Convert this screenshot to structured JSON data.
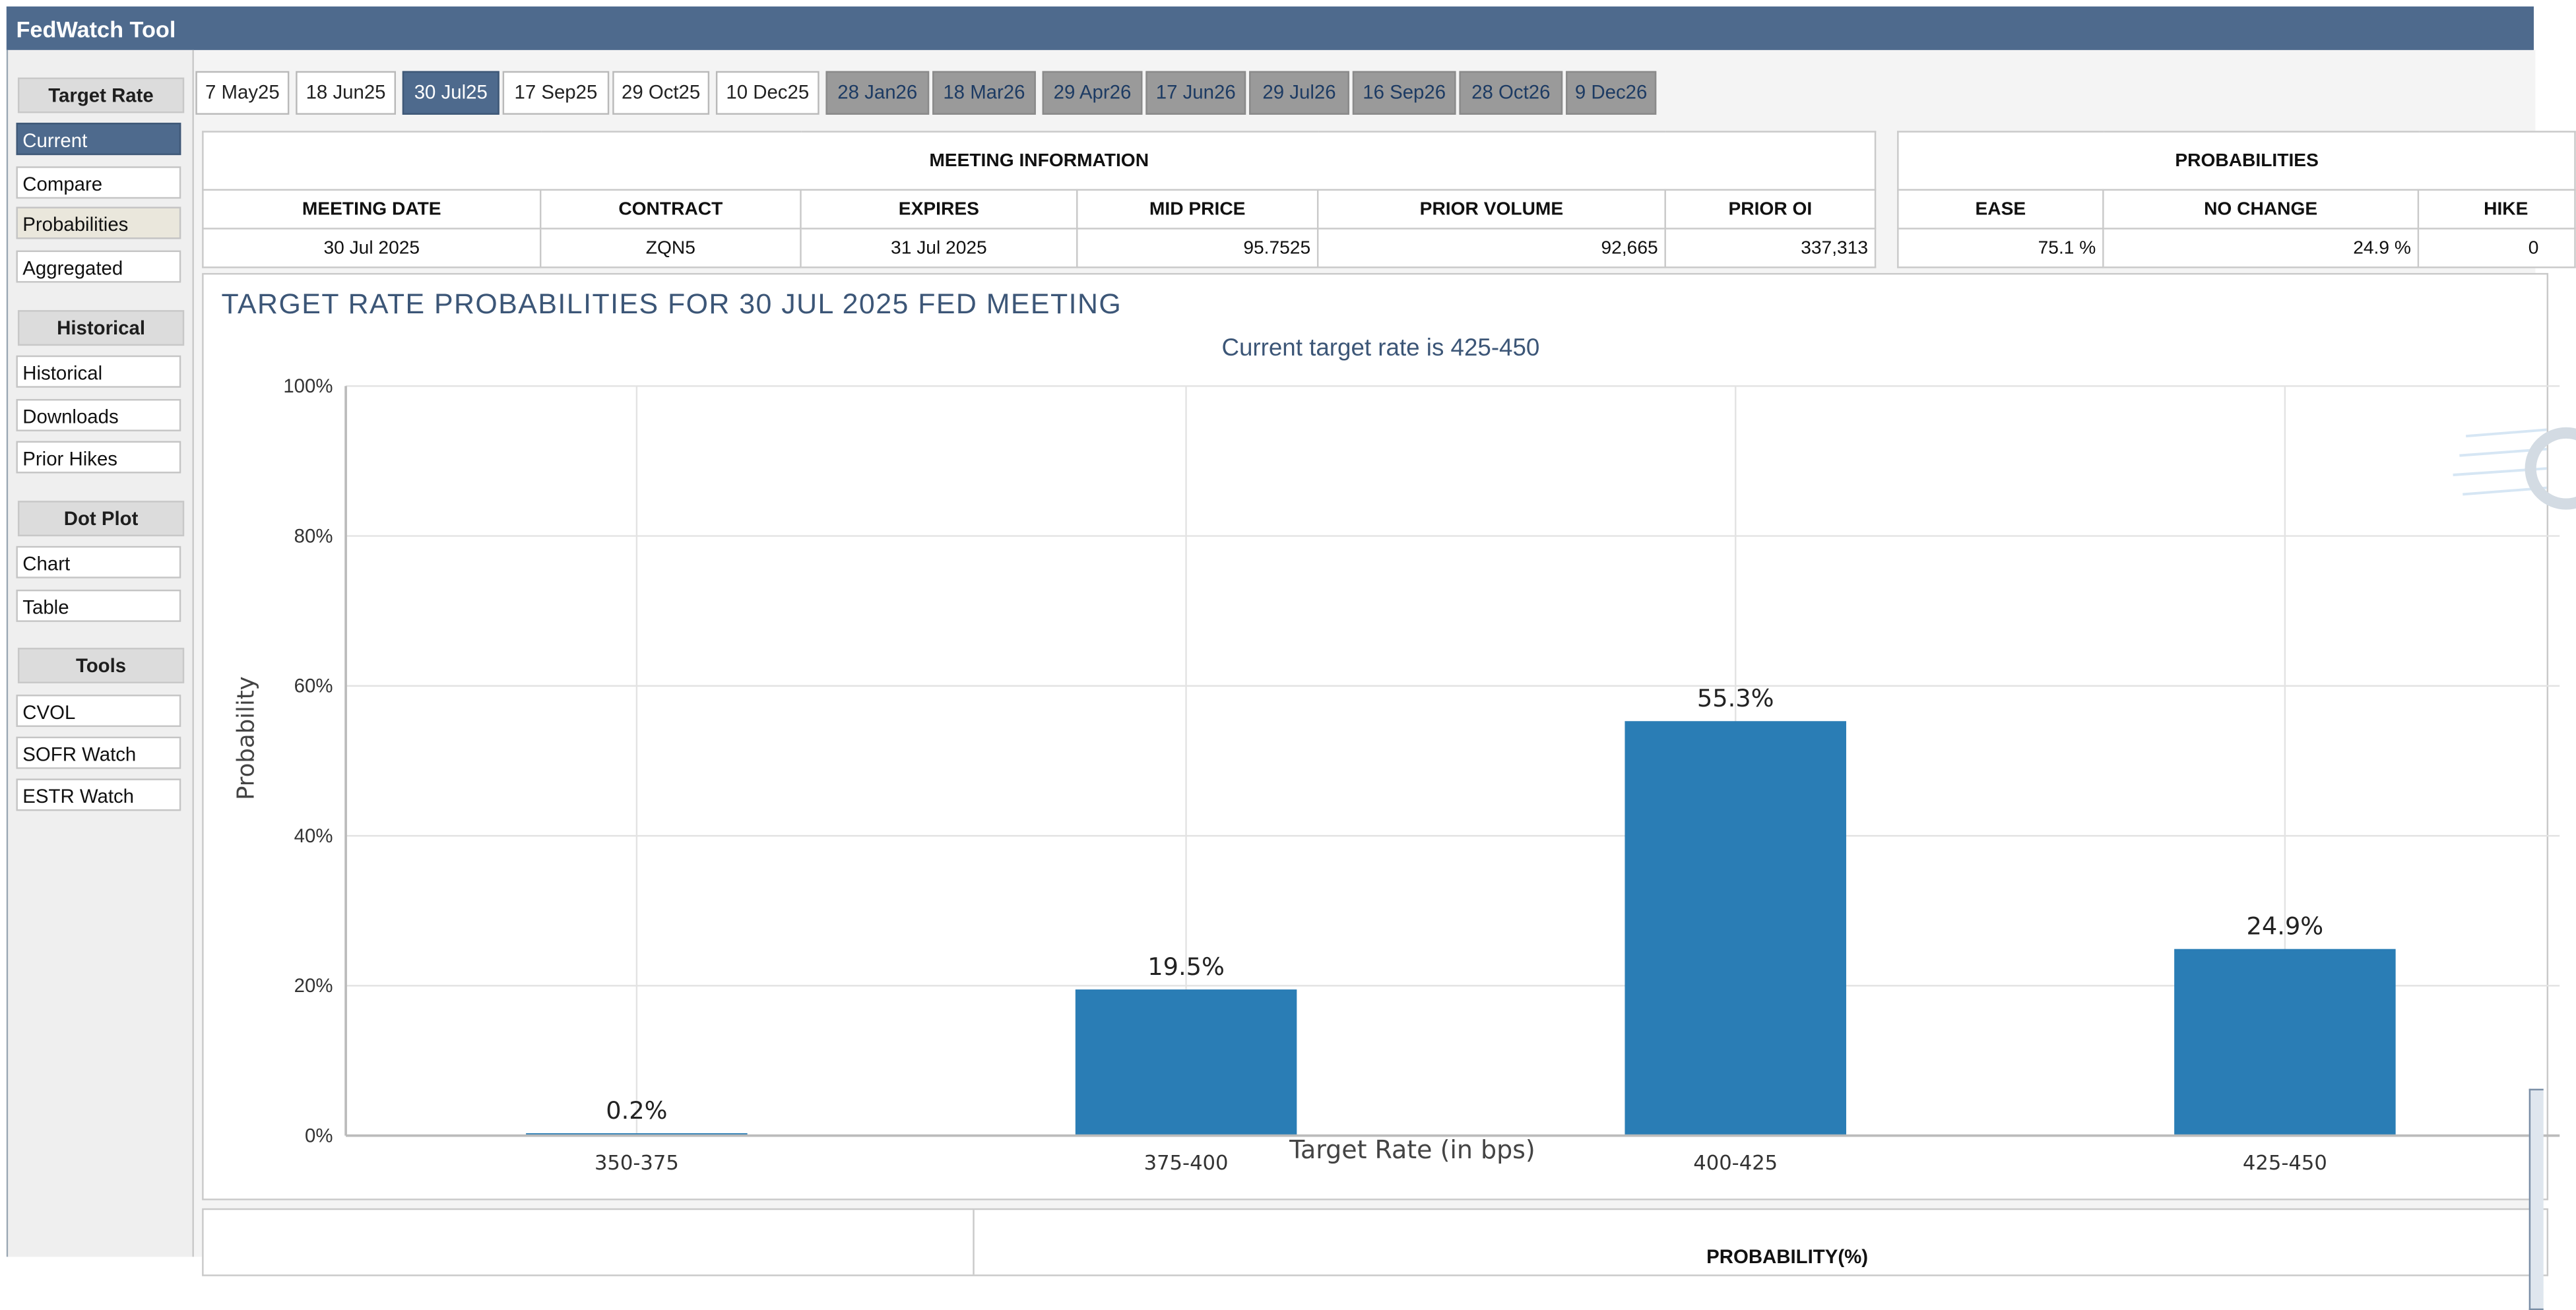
{
  "app": {
    "title": "FedWatch Tool"
  },
  "sidebar": {
    "target_rate": {
      "heading": "Target Rate",
      "items": [
        {
          "label": "Current",
          "active": true
        },
        {
          "label": "Compare"
        },
        {
          "label": "Probabilities"
        },
        {
          "label": "Aggregated"
        }
      ]
    },
    "historical": {
      "heading": "Historical",
      "items": [
        {
          "label": "Historical"
        },
        {
          "label": "Downloads"
        },
        {
          "label": "Prior Hikes"
        }
      ]
    },
    "dot_plot": {
      "heading": "Dot Plot",
      "items": [
        {
          "label": "Chart"
        },
        {
          "label": "Table"
        }
      ]
    },
    "tools": {
      "heading": "Tools",
      "items": [
        {
          "label": "CVOL"
        },
        {
          "label": "SOFR Watch"
        },
        {
          "label": "ESTR Watch"
        }
      ]
    }
  },
  "tabs": [
    {
      "label": "7 May25"
    },
    {
      "label": "18 Jun25"
    },
    {
      "label": "30 Jul25",
      "active": true
    },
    {
      "label": "17 Sep25"
    },
    {
      "label": "29 Oct25"
    },
    {
      "label": "10 Dec25"
    },
    {
      "label": "28 Jan26"
    },
    {
      "label": "18 Mar26"
    },
    {
      "label": "29 Apr26"
    },
    {
      "label": "17 Jun26"
    },
    {
      "label": "29 Jul26"
    },
    {
      "label": "16 Sep26"
    },
    {
      "label": "28 Oct26"
    },
    {
      "label": "9 Dec26"
    }
  ],
  "meeting_info": {
    "caption": "MEETING INFORMATION",
    "headers": {
      "date": "MEETING DATE",
      "contract": "CONTRACT",
      "expires": "EXPIRES",
      "mid_price": "MID PRICE",
      "prior_volume": "PRIOR VOLUME",
      "prior_oi": "PRIOR OI"
    },
    "row": {
      "date": "30 Jul 2025",
      "contract": "ZQN5",
      "expires": "31 Jul 2025",
      "mid_price": "95.7525",
      "prior_volume": "92,665",
      "prior_oi": "337,313"
    }
  },
  "probabilities": {
    "caption": "PROBABILITIES",
    "headers": {
      "ease": "EASE",
      "no_change": "NO CHANGE",
      "hike": "HIKE"
    },
    "row": {
      "ease": "75.1 %",
      "no_change": "24.9 %",
      "hike": "0"
    }
  },
  "chart": {
    "title": "TARGET RATE PROBABILITIES FOR 30 JUL 2025 FED MEETING",
    "subtitle": "Current target rate is 425-450"
  },
  "chart_data": {
    "type": "bar",
    "title": "TARGET RATE PROBABILITIES FOR 30 JUL 2025 FED MEETING",
    "subtitle": "Current target rate is 425-450",
    "categories": [
      "350-375",
      "375-400",
      "400-425",
      "425-450"
    ],
    "values": [
      0.2,
      19.5,
      55.3,
      24.9
    ],
    "value_labels": [
      "0.2%",
      "19.5%",
      "55.3%",
      "24.9%"
    ],
    "xlabel": "Target Rate (in bps)",
    "ylabel": "Probability",
    "ylim": [
      0,
      100
    ],
    "yticks": [
      "0%",
      "20%",
      "40%",
      "60%",
      "80%",
      "100%"
    ],
    "grid": true,
    "bar_color": "#2a7db5"
  },
  "bottom_table": {
    "caption": "PROBABILITY(%)"
  }
}
